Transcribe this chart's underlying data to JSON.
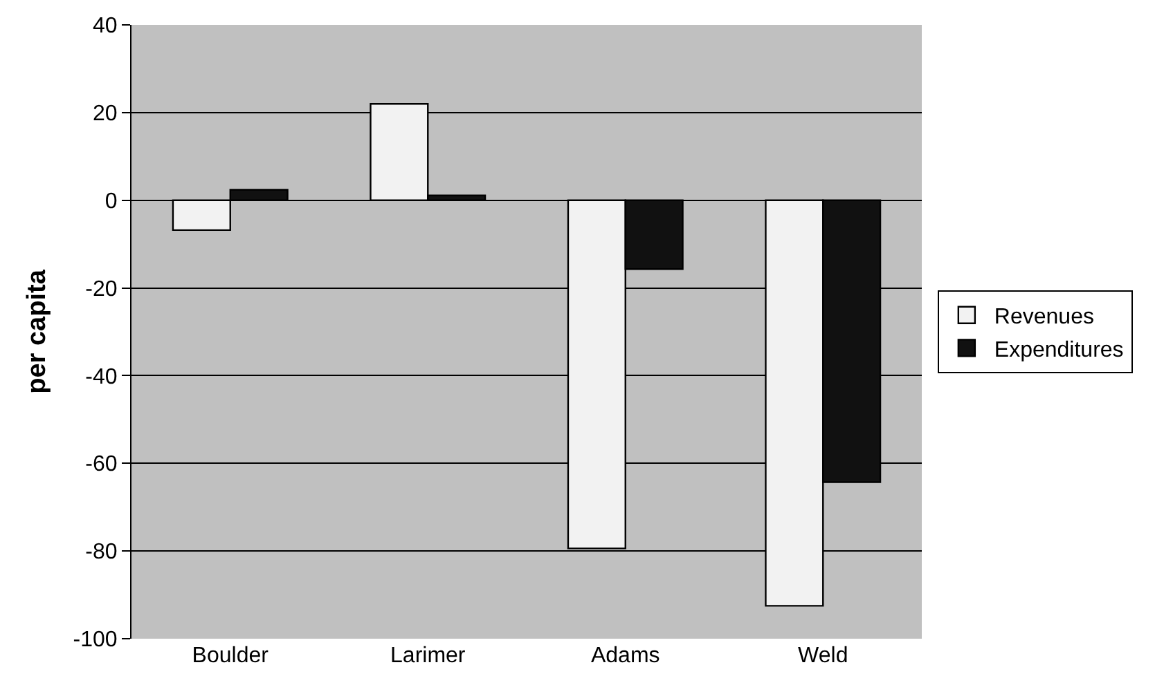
{
  "chart_data": {
    "type": "bar",
    "ylabel": "per capita",
    "categories": [
      "Boulder",
      "Larimer",
      "Adams",
      "Weld"
    ],
    "series": [
      {
        "name": "Revenues",
        "color": "#f2f2f2",
        "values": [
          -6.8,
          22,
          -79.4,
          -92.5
        ]
      },
      {
        "name": "Expenditures",
        "color": "#111111",
        "values": [
          2.4,
          1.1,
          -15.7,
          -64.3
        ]
      }
    ],
    "ylim": [
      -100,
      40
    ],
    "yticks": [
      -100,
      -80,
      -60,
      -40,
      -20,
      0,
      20,
      40
    ],
    "grid": "y",
    "legend": "right"
  }
}
